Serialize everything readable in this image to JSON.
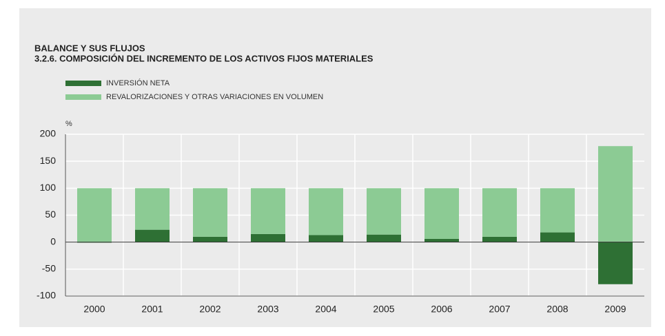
{
  "chart_data": {
    "type": "bar",
    "stacked": true,
    "title": "BALANCE Y SUS FLUJOS",
    "subtitle": "3.2.6. COMPOSICIÓN DEL INCREMENTO DE LOS ACTIVOS FIJOS MATERIALES",
    "y_label": "%",
    "categories": [
      "2000",
      "2001",
      "2002",
      "2003",
      "2004",
      "2005",
      "2006",
      "2007",
      "2008",
      "2009"
    ],
    "series": [
      {
        "name": "INVERSIÓN NETA",
        "color": "#2e7034",
        "values": [
          -1,
          23,
          10,
          15,
          13,
          14,
          6,
          10,
          18,
          -78
        ]
      },
      {
        "name": "REVALORIZACIONES Y OTRAS VARIACIONES EN VOLUMEN",
        "color": "#8ccb94",
        "values": [
          100,
          77,
          90,
          85,
          87,
          86,
          94,
          90,
          82,
          178
        ]
      }
    ],
    "ylim": [
      -100,
      200
    ],
    "yticks": [
      -100,
      -50,
      0,
      50,
      100,
      150,
      200
    ],
    "grid": true
  }
}
